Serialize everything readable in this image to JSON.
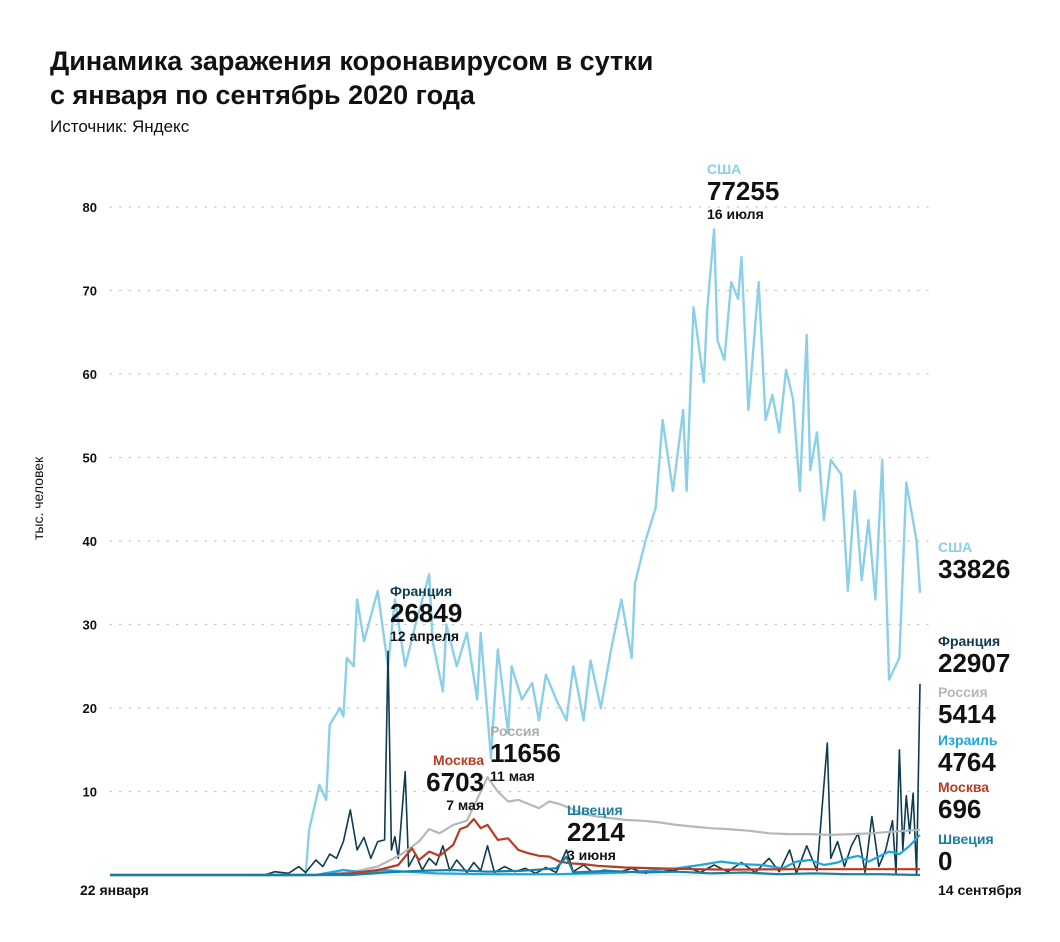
{
  "chart_data": {
    "type": "line",
    "title_line1": "Динамика заражения коронавирусом в сутки",
    "title_line2": "с января по сентябрь 2020 года",
    "source": "Источник: Яндекс",
    "ylabel": "тыс. человек",
    "xlabel": "",
    "x_unit": "days since 22 January 2020",
    "xlim": [
      0,
      236
    ],
    "ylim": [
      0,
      80
    ],
    "yticks": [
      10,
      20,
      30,
      40,
      50,
      60,
      70,
      80
    ],
    "xtick_labels": {
      "start": "22 января",
      "end": "14 сентября"
    },
    "grid": true,
    "series": [
      {
        "name": "США",
        "color": "#8ccfe8",
        "width": 2.4,
        "points": [
          [
            0,
            0
          ],
          [
            57,
            0
          ],
          [
            58,
            5.4
          ],
          [
            61,
            10.8
          ],
          [
            63,
            9
          ],
          [
            64,
            18
          ],
          [
            67,
            20
          ],
          [
            68,
            19
          ],
          [
            69,
            26
          ],
          [
            71,
            25
          ],
          [
            72,
            33
          ],
          [
            74,
            28
          ],
          [
            78,
            34
          ],
          [
            81,
            25
          ],
          [
            83,
            33
          ],
          [
            86,
            25
          ],
          [
            89,
            30
          ],
          [
            93,
            36
          ],
          [
            94,
            28
          ],
          [
            97,
            22
          ],
          [
            98,
            30
          ],
          [
            101,
            25
          ],
          [
            104,
            29
          ],
          [
            107,
            21
          ],
          [
            108,
            29
          ],
          [
            111,
            14
          ],
          [
            113,
            27
          ],
          [
            116,
            17
          ],
          [
            117,
            25
          ],
          [
            120,
            21
          ],
          [
            123,
            23
          ],
          [
            125,
            18.5
          ],
          [
            127,
            24
          ],
          [
            130,
            21
          ],
          [
            133,
            18.5
          ],
          [
            135,
            25
          ],
          [
            138,
            18.5
          ],
          [
            140,
            25.7
          ],
          [
            143,
            20
          ],
          [
            146,
            27
          ],
          [
            149,
            33
          ],
          [
            152,
            26
          ],
          [
            153,
            35
          ],
          [
            156,
            40
          ],
          [
            159,
            44
          ],
          [
            161,
            54.5
          ],
          [
            164,
            46
          ],
          [
            167,
            55.7
          ],
          [
            168,
            46
          ],
          [
            170,
            68
          ],
          [
            173,
            59
          ],
          [
            174,
            67.7
          ],
          [
            176,
            77.3
          ],
          [
            177,
            64
          ],
          [
            179,
            61.7
          ],
          [
            181,
            71
          ],
          [
            183,
            69
          ],
          [
            184,
            74
          ],
          [
            186,
            55.7
          ],
          [
            189,
            71
          ],
          [
            191,
            54.5
          ],
          [
            193,
            57.5
          ],
          [
            195,
            53
          ],
          [
            197,
            60.5
          ],
          [
            199,
            57
          ],
          [
            201,
            46
          ],
          [
            203,
            64.7
          ],
          [
            204,
            48.5
          ],
          [
            206,
            53
          ],
          [
            208,
            42.5
          ],
          [
            210,
            49.7
          ],
          [
            213,
            48
          ],
          [
            215,
            34
          ],
          [
            217,
            46
          ],
          [
            219,
            35.3
          ],
          [
            221,
            42.5
          ],
          [
            223,
            33
          ],
          [
            225,
            49.7
          ],
          [
            227,
            23.4
          ],
          [
            230,
            26
          ],
          [
            232,
            47
          ],
          [
            235,
            40
          ],
          [
            236,
            33.8
          ]
        ]
      },
      {
        "name": "Франция",
        "color": "#0e3b50",
        "width": 1.6,
        "points": [
          [
            0,
            0
          ],
          [
            45,
            0
          ],
          [
            48,
            0.4
          ],
          [
            52,
            0.2
          ],
          [
            55,
            1
          ],
          [
            57,
            0.3
          ],
          [
            60,
            1.8
          ],
          [
            62,
            1
          ],
          [
            64,
            2.5
          ],
          [
            66,
            2
          ],
          [
            68,
            4
          ],
          [
            70,
            7.8
          ],
          [
            72,
            3
          ],
          [
            74,
            4.5
          ],
          [
            76,
            2
          ],
          [
            78,
            4
          ],
          [
            80,
            4.2
          ],
          [
            81,
            26.8
          ],
          [
            82,
            3
          ],
          [
            83,
            4.6
          ],
          [
            84,
            2
          ],
          [
            86,
            12.4
          ],
          [
            87,
            1
          ],
          [
            89,
            2.5
          ],
          [
            91,
            0.6
          ],
          [
            93,
            2
          ],
          [
            95,
            1.2
          ],
          [
            97,
            3.5
          ],
          [
            99,
            0.5
          ],
          [
            101,
            1.8
          ],
          [
            104,
            0.3
          ],
          [
            106,
            1.5
          ],
          [
            108,
            0.5
          ],
          [
            110,
            3.5
          ],
          [
            112,
            0.3
          ],
          [
            115,
            1
          ],
          [
            118,
            0.4
          ],
          [
            121,
            0.8
          ],
          [
            124,
            0.2
          ],
          [
            127,
            0.9
          ],
          [
            130,
            0.3
          ],
          [
            133,
            3
          ],
          [
            135,
            0.4
          ],
          [
            138,
            1.2
          ],
          [
            141,
            0.2
          ],
          [
            144,
            0.6
          ],
          [
            148,
            0.3
          ],
          [
            152,
            0.8
          ],
          [
            156,
            0.2
          ],
          [
            160,
            0.7
          ],
          [
            164,
            0.5
          ],
          [
            168,
            1
          ],
          [
            172,
            0.3
          ],
          [
            176,
            1.2
          ],
          [
            180,
            0.4
          ],
          [
            184,
            1.5
          ],
          [
            188,
            0.3
          ],
          [
            192,
            2
          ],
          [
            195,
            0.4
          ],
          [
            198,
            3
          ],
          [
            200,
            0.2
          ],
          [
            203,
            3.5
          ],
          [
            206,
            0.5
          ],
          [
            209,
            15.8
          ],
          [
            210,
            2
          ],
          [
            212,
            4
          ],
          [
            214,
            1
          ],
          [
            216,
            3.5
          ],
          [
            218,
            5
          ],
          [
            220,
            0.3
          ],
          [
            222,
            7
          ],
          [
            224,
            1
          ],
          [
            226,
            3
          ],
          [
            228,
            6.5
          ],
          [
            229,
            0.2
          ],
          [
            230,
            15
          ],
          [
            231,
            3
          ],
          [
            232,
            9.5
          ],
          [
            233,
            5
          ],
          [
            234,
            9.8
          ],
          [
            235,
            0.1
          ],
          [
            236,
            22.9
          ]
        ]
      },
      {
        "name": "Россия",
        "color": "#b4b8bb",
        "width": 2.2,
        "points": [
          [
            0,
            0
          ],
          [
            60,
            0
          ],
          [
            70,
            0.3
          ],
          [
            78,
            1
          ],
          [
            85,
            2.5
          ],
          [
            90,
            4
          ],
          [
            93,
            5.5
          ],
          [
            96,
            5
          ],
          [
            100,
            6
          ],
          [
            104,
            6.5
          ],
          [
            110,
            11.7
          ],
          [
            113,
            10
          ],
          [
            116,
            8.8
          ],
          [
            119,
            9
          ],
          [
            122,
            8.5
          ],
          [
            125,
            8
          ],
          [
            128,
            8.8
          ],
          [
            131,
            8.5
          ],
          [
            134,
            8
          ],
          [
            138,
            7.3
          ],
          [
            142,
            7
          ],
          [
            146,
            6.8
          ],
          [
            150,
            6.6
          ],
          [
            155,
            6.5
          ],
          [
            160,
            6.3
          ],
          [
            165,
            6
          ],
          [
            170,
            5.8
          ],
          [
            175,
            5.6
          ],
          [
            180,
            5.5
          ],
          [
            186,
            5.3
          ],
          [
            192,
            5
          ],
          [
            198,
            4.9
          ],
          [
            204,
            4.9
          ],
          [
            210,
            4.8
          ],
          [
            216,
            4.9
          ],
          [
            222,
            5
          ],
          [
            228,
            5.2
          ],
          [
            232,
            5.3
          ],
          [
            236,
            5.4
          ]
        ]
      },
      {
        "name": "Израиль",
        "color": "#1da6dc",
        "width": 2.2,
        "points": [
          [
            0,
            0
          ],
          [
            60,
            0
          ],
          [
            68,
            0.6
          ],
          [
            74,
            0.3
          ],
          [
            80,
            0.6
          ],
          [
            86,
            0.4
          ],
          [
            95,
            0.2
          ],
          [
            110,
            0.1
          ],
          [
            130,
            0.1
          ],
          [
            150,
            0.3
          ],
          [
            165,
            0.8
          ],
          [
            172,
            1.2
          ],
          [
            178,
            1.6
          ],
          [
            184,
            1.3
          ],
          [
            190,
            1.2
          ],
          [
            196,
            0.8
          ],
          [
            200,
            1.6
          ],
          [
            204,
            1.8
          ],
          [
            208,
            1.2
          ],
          [
            212,
            1.5
          ],
          [
            215,
            2
          ],
          [
            218,
            2.3
          ],
          [
            221,
            1.6
          ],
          [
            224,
            2.2
          ],
          [
            227,
            2.8
          ],
          [
            230,
            2.5
          ],
          [
            233,
            3.5
          ],
          [
            236,
            4.8
          ]
        ]
      },
      {
        "name": "Москва",
        "color": "#b83c22",
        "width": 2.2,
        "points": [
          [
            0,
            0
          ],
          [
            60,
            0
          ],
          [
            70,
            0.2
          ],
          [
            78,
            0.6
          ],
          [
            84,
            1.2
          ],
          [
            88,
            3.2
          ],
          [
            90,
            1.8
          ],
          [
            93,
            2.8
          ],
          [
            96,
            2.3
          ],
          [
            100,
            3.6
          ],
          [
            102,
            5.5
          ],
          [
            104,
            5.8
          ],
          [
            106,
            6.7
          ],
          [
            108,
            5.6
          ],
          [
            110,
            6
          ],
          [
            113,
            4.2
          ],
          [
            116,
            4.4
          ],
          [
            119,
            3
          ],
          [
            122,
            2.6
          ],
          [
            125,
            2.3
          ],
          [
            128,
            2.2
          ],
          [
            131,
            1.6
          ],
          [
            134,
            1.4
          ],
          [
            138,
            1.3
          ],
          [
            142,
            1.1
          ],
          [
            146,
            1
          ],
          [
            150,
            0.9
          ],
          [
            160,
            0.8
          ],
          [
            170,
            0.7
          ],
          [
            180,
            0.65
          ],
          [
            200,
            0.7
          ],
          [
            220,
            0.7
          ],
          [
            236,
            0.7
          ]
        ]
      },
      {
        "name": "Швеция",
        "color": "#1b7fa2",
        "width": 2.2,
        "points": [
          [
            0,
            0
          ],
          [
            70,
            0
          ],
          [
            80,
            0.3
          ],
          [
            90,
            0.5
          ],
          [
            100,
            0.6
          ],
          [
            110,
            0.4
          ],
          [
            120,
            0.5
          ],
          [
            130,
            0.8
          ],
          [
            133,
            2.2
          ],
          [
            135,
            0.3
          ],
          [
            145,
            0.5
          ],
          [
            155,
            0.3
          ],
          [
            165,
            0.4
          ],
          [
            175,
            0.2
          ],
          [
            185,
            0.3
          ],
          [
            195,
            0.1
          ],
          [
            205,
            0.2
          ],
          [
            215,
            0.1
          ],
          [
            225,
            0.1
          ],
          [
            236,
            0
          ]
        ]
      }
    ],
    "annotations": [
      {
        "series": "США",
        "value": "77255",
        "date": "16 июля"
      },
      {
        "series": "Франция",
        "value": "26849",
        "date": "12 апреля"
      },
      {
        "series": "Россия",
        "value": "11656",
        "date": "11 мая"
      },
      {
        "series": "Москва",
        "value": "6703",
        "date": "7 мая"
      },
      {
        "series": "Швеция",
        "value": "2214",
        "date": "3 июня"
      }
    ],
    "end_labels": [
      {
        "series": "США",
        "value": "33826"
      },
      {
        "series": "Франция",
        "value": "22907"
      },
      {
        "series": "Россия",
        "value": "5414"
      },
      {
        "series": "Израиль",
        "value": "4764"
      },
      {
        "series": "Москва",
        "value": "696"
      },
      {
        "series": "Швеция",
        "value": "0"
      }
    ]
  }
}
